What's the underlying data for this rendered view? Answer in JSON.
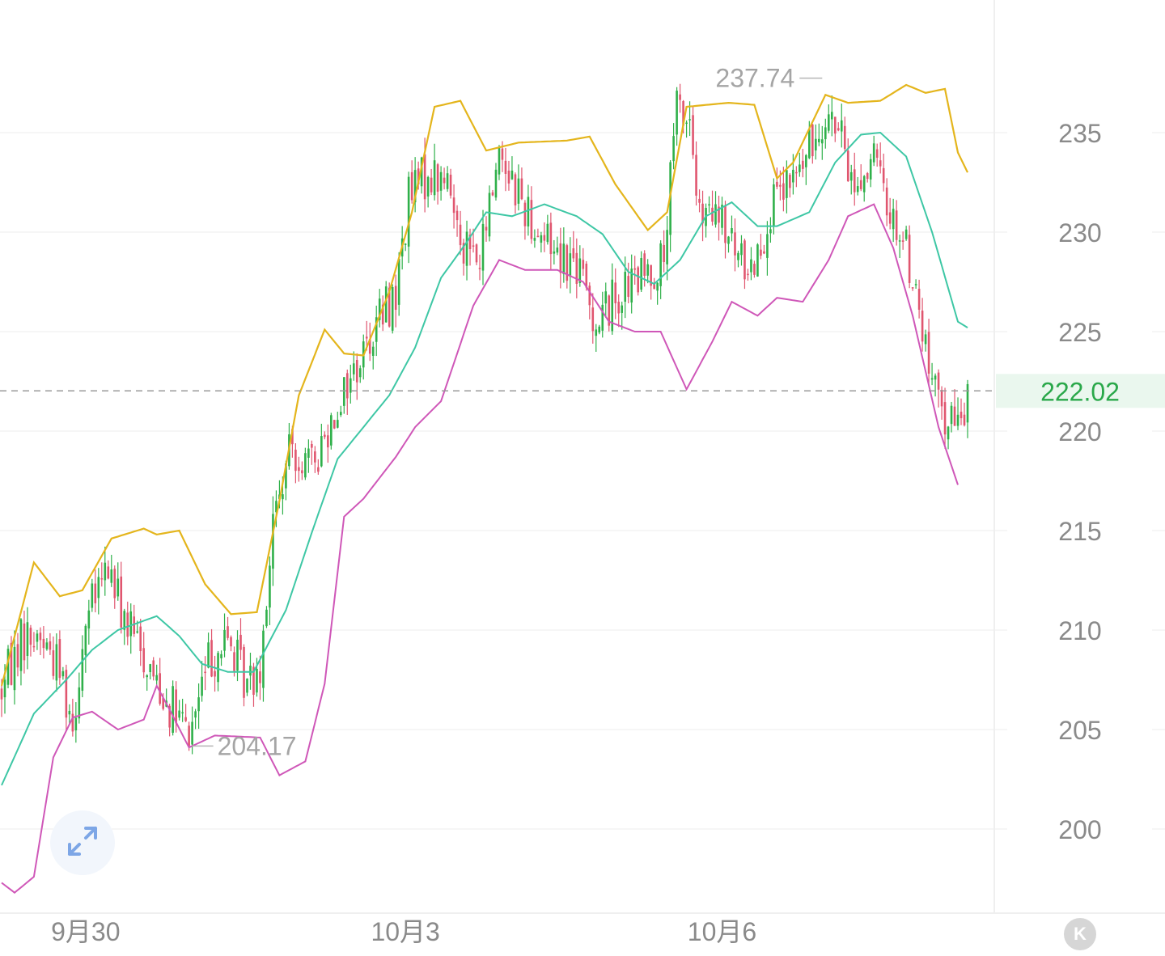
{
  "colors": {
    "up": "#2fb04a",
    "down": "#e0566f",
    "upper_band": "#e4b51c",
    "middle_band": "#3ec7a5",
    "lower_band": "#cf57b8",
    "grid": "#eeeeee",
    "axis_text": "#8a8a8a",
    "current_price": "#2aa84a",
    "current_price_bg": "#eaf7ee"
  },
  "icons": {
    "expand": "expand-arrows-icon",
    "kline": "k-icon"
  },
  "k_badge_label": "K",
  "chart_data": {
    "type": "candlestick",
    "indicator": "bollinger-bands",
    "ylim": [
      195.8,
      240
    ],
    "y_ticks": [
      200,
      205,
      210,
      215,
      220,
      225,
      230,
      235
    ],
    "x_tick_labels": [
      {
        "label": "9月30",
        "index": 26
      },
      {
        "label": "10月3",
        "index": 125
      },
      {
        "label": "10月6",
        "index": 223
      }
    ],
    "current_price": 222.02,
    "annotations": {
      "high": {
        "label": "237.74",
        "value": 237.74,
        "index": 255
      },
      "low": {
        "label": "204.17",
        "value": 204.17,
        "index": 58
      }
    },
    "grid": true,
    "candles": {
      "count": 300,
      "knots": [
        [
          0,
          207
        ],
        [
          6,
          209.6
        ],
        [
          12,
          209.7
        ],
        [
          18,
          208.2
        ],
        [
          22,
          205.4
        ],
        [
          26,
          210.4
        ],
        [
          33,
          213.2
        ],
        [
          38,
          210.5
        ],
        [
          47,
          207.8
        ],
        [
          52,
          206.3
        ],
        [
          58,
          204.6
        ],
        [
          64,
          208.5
        ],
        [
          70,
          209.5
        ],
        [
          76,
          207.2
        ],
        [
          80,
          208.5
        ],
        [
          84,
          215.4
        ],
        [
          90,
          219.3
        ],
        [
          96,
          218.1
        ],
        [
          104,
          221.5
        ],
        [
          110,
          223.3
        ],
        [
          116,
          225.5
        ],
        [
          122,
          226.9
        ],
        [
          126,
          231.7
        ],
        [
          132,
          233
        ],
        [
          138,
          232.4
        ],
        [
          143,
          229.6
        ],
        [
          148,
          228.4
        ],
        [
          154,
          234.3
        ],
        [
          160,
          232
        ],
        [
          166,
          230.1
        ],
        [
          172,
          229.2
        ],
        [
          178,
          228.3
        ],
        [
          184,
          225.5
        ],
        [
          190,
          226.8
        ],
        [
          198,
          227.7
        ],
        [
          205,
          228.5
        ],
        [
          209,
          236.3
        ],
        [
          213,
          235.6
        ],
        [
          216,
          230.5
        ],
        [
          222,
          230.6
        ],
        [
          228,
          228.6
        ],
        [
          232,
          228.3
        ],
        [
          238,
          231
        ],
        [
          243,
          232.1
        ],
        [
          250,
          234
        ],
        [
          255,
          236.3
        ],
        [
          259,
          235
        ],
        [
          264,
          232.3
        ],
        [
          270,
          233.6
        ],
        [
          274,
          231.5
        ],
        [
          280,
          229.2
        ],
        [
          284,
          226
        ],
        [
          288,
          222.1
        ],
        [
          292,
          220.8
        ],
        [
          296,
          220.2
        ],
        [
          299,
          222.02
        ]
      ]
    },
    "bands": {
      "upper": [
        [
          0,
          207.2
        ],
        [
          10,
          213.4
        ],
        [
          18,
          211.7
        ],
        [
          25,
          212
        ],
        [
          34,
          214.6
        ],
        [
          44,
          215.1
        ],
        [
          48,
          214.8
        ],
        [
          55,
          215
        ],
        [
          63,
          212.3
        ],
        [
          71,
          210.8
        ],
        [
          79,
          210.9
        ],
        [
          86,
          216.5
        ],
        [
          92,
          221.8
        ],
        [
          100,
          225.1
        ],
        [
          106,
          223.9
        ],
        [
          112,
          223.8
        ],
        [
          120,
          227
        ],
        [
          127,
          231
        ],
        [
          134,
          236.3
        ],
        [
          142,
          236.6
        ],
        [
          150,
          234.1
        ],
        [
          160,
          234.5
        ],
        [
          175,
          234.6
        ],
        [
          182,
          234.8
        ],
        [
          190,
          232.4
        ],
        [
          200,
          230.1
        ],
        [
          206,
          231
        ],
        [
          212,
          236.3
        ],
        [
          225,
          236.5
        ],
        [
          233,
          236.4
        ],
        [
          240,
          232.7
        ],
        [
          245,
          233.5
        ],
        [
          255,
          236.9
        ],
        [
          262,
          236.5
        ],
        [
          272,
          236.6
        ],
        [
          280,
          237.4
        ],
        [
          286,
          237
        ],
        [
          292,
          237.2
        ],
        [
          296,
          234
        ],
        [
          299,
          233
        ]
      ],
      "middle": [
        [
          0,
          202.2
        ],
        [
          10,
          205.8
        ],
        [
          20,
          207.5
        ],
        [
          28,
          209
        ],
        [
          36,
          210
        ],
        [
          48,
          210.7
        ],
        [
          55,
          209.7
        ],
        [
          62,
          208.3
        ],
        [
          70,
          207.9
        ],
        [
          78,
          207.9
        ],
        [
          88,
          211
        ],
        [
          96,
          214.9
        ],
        [
          104,
          218.6
        ],
        [
          112,
          220.2
        ],
        [
          120,
          221.8
        ],
        [
          128,
          224.2
        ],
        [
          136,
          227.7
        ],
        [
          144,
          229.5
        ],
        [
          150,
          231
        ],
        [
          158,
          230.8
        ],
        [
          168,
          231.4
        ],
        [
          178,
          230.8
        ],
        [
          186,
          229.9
        ],
        [
          194,
          228
        ],
        [
          202,
          227.4
        ],
        [
          210,
          228.6
        ],
        [
          218,
          230.8
        ],
        [
          226,
          231.5
        ],
        [
          234,
          230.3
        ],
        [
          240,
          230.3
        ],
        [
          250,
          231
        ],
        [
          258,
          233.5
        ],
        [
          266,
          234.9
        ],
        [
          272,
          235
        ],
        [
          280,
          233.8
        ],
        [
          288,
          230
        ],
        [
          296,
          225.5
        ],
        [
          299,
          225.2
        ]
      ],
      "lower": [
        [
          0,
          197.3
        ],
        [
          4,
          196.8
        ],
        [
          10,
          197.6
        ],
        [
          16,
          203.6
        ],
        [
          22,
          205.6
        ],
        [
          28,
          205.9
        ],
        [
          36,
          205
        ],
        [
          44,
          205.5
        ],
        [
          48,
          207.2
        ],
        [
          52,
          206
        ],
        [
          58,
          204.1
        ],
        [
          66,
          204.7
        ],
        [
          80,
          204.6
        ],
        [
          86,
          202.7
        ],
        [
          94,
          203.4
        ],
        [
          100,
          207.3
        ],
        [
          106,
          215.7
        ],
        [
          112,
          216.6
        ],
        [
          122,
          218.7
        ],
        [
          128,
          220.2
        ],
        [
          136,
          221.5
        ],
        [
          146,
          226.3
        ],
        [
          154,
          228.6
        ],
        [
          162,
          228.1
        ],
        [
          172,
          228.1
        ],
        [
          180,
          227.5
        ],
        [
          188,
          225.5
        ],
        [
          196,
          225
        ],
        [
          204,
          225
        ],
        [
          212,
          222.1
        ],
        [
          220,
          224.5
        ],
        [
          226,
          226.5
        ],
        [
          234,
          225.8
        ],
        [
          240,
          226.7
        ],
        [
          248,
          226.5
        ],
        [
          256,
          228.6
        ],
        [
          262,
          230.8
        ],
        [
          270,
          231.4
        ],
        [
          276,
          229.2
        ],
        [
          282,
          225.8
        ],
        [
          290,
          220.2
        ],
        [
          296,
          217.3
        ]
      ]
    }
  }
}
